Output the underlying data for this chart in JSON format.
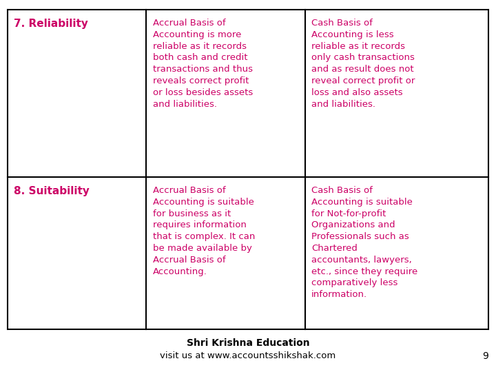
{
  "bg_color": "#ffffff",
  "text_color": "#cc0066",
  "border_color": "#000000",
  "footer_text_color": "#000000",
  "col_splits": [
    0.015,
    0.295,
    0.615,
    0.985
  ],
  "row_splits": [
    0.975,
    0.525,
    0.115
  ],
  "rows": [
    {
      "col0": "7. Reliability",
      "col1": "Accrual Basis of\nAccounting is more\nreliable as it records\nboth cash and credit\ntransactions and thus\nreveals correct profit\nor loss besides assets\nand liabilities.",
      "col2": "Cash Basis of\nAccounting is less\nreliable as it records\nonly cash transactions\nand as result does not\nreveal correct profit or\nloss and also assets\nand liabilities."
    },
    {
      "col0": "8. Suitability",
      "col1": "Accrual Basis of\nAccounting is suitable\nfor business as it\nrequires information\nthat is complex. It can\nbe made available by\nAccrual Basis of\nAccounting.",
      "col2": "Cash Basis of\nAccounting is suitable\nfor Not-for-profit\nOrganizations and\nProfessionals such as\nChartered\naccountants, lawyers,\netc., since they require\ncomparatively less\ninformation."
    }
  ],
  "footer_line1": "Shri Krishna Education",
  "footer_line2": "visit us at www.accountsshikshak.com",
  "page_number": "9",
  "font_size_header": 11.0,
  "font_size_body": 9.5
}
